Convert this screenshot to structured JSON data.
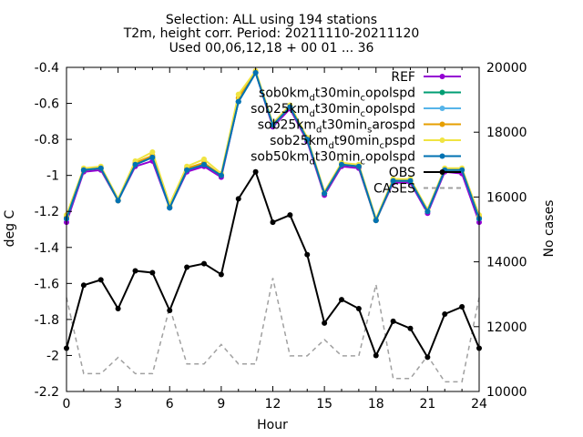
{
  "chart_data": {
    "type": "line",
    "title_lines": [
      "Selection: ALL using   194 stations",
      "T2m, height corr.   Period: 20211110-20211120",
      "Used 00,06,12,18 + 00 01 ... 36"
    ],
    "xlabel": "Hour",
    "ylabel": "deg C",
    "y2label": "No cases",
    "xlim": [
      0,
      24
    ],
    "ylim": [
      -2.2,
      -0.4
    ],
    "y2lim": [
      10000,
      20000
    ],
    "xticks": [
      "0",
      "3",
      "6",
      "9",
      "12",
      "15",
      "18",
      "21",
      "24"
    ],
    "yticks": [
      "-0.4",
      "-0.6",
      "-0.8",
      "-1",
      "-1.2",
      "-1.4",
      "-1.6",
      "-1.8",
      "-2",
      "-2.2"
    ],
    "y2ticks": [
      "10000",
      "12000",
      "14000",
      "16000",
      "18000",
      "20000"
    ],
    "grid": false,
    "legend_position": "top-right",
    "x": [
      0,
      1,
      2,
      3,
      4,
      5,
      6,
      7,
      8,
      9,
      10,
      11,
      12,
      13,
      14,
      15,
      16,
      17,
      18,
      19,
      20,
      21,
      22,
      23,
      24
    ],
    "series": [
      {
        "name": "REF",
        "legend_main": "REF",
        "legend_sub": "",
        "legend_tail": "",
        "color": "#9400d3",
        "marker": "circle",
        "axis": "y1",
        "values": [
          -1.26,
          -0.98,
          -0.97,
          -1.14,
          -0.95,
          -0.92,
          -1.18,
          -0.98,
          -0.95,
          -1.01,
          -0.59,
          -0.43,
          -0.73,
          -0.63,
          -0.81,
          -1.11,
          -0.95,
          -0.96,
          -1.25,
          -1.04,
          -1.04,
          -1.21,
          -0.98,
          -0.99,
          -1.26
        ]
      },
      {
        "name": "sob0km_dt30min_copolspd",
        "legend_main": "sob0km",
        "legend_sub": "d",
        "legend_tail": "t30min",
        "legend_sub2": "c",
        "legend_tail2": "opolspd",
        "color": "#009e73",
        "marker": "circle",
        "axis": "y1",
        "values": [
          -1.24,
          -0.97,
          -0.96,
          -1.14,
          -0.94,
          -0.9,
          -1.18,
          -0.97,
          -0.94,
          -1.0,
          -0.59,
          -0.43,
          -0.72,
          -0.62,
          -0.8,
          -1.1,
          -0.94,
          -0.95,
          -1.25,
          -1.03,
          -1.03,
          -1.2,
          -0.97,
          -0.97,
          -1.24
        ]
      },
      {
        "name": "sob25km_dt30min_copolspd",
        "legend_main": "sob25km",
        "legend_sub": "d",
        "legend_tail": "t30min",
        "legend_sub2": "c",
        "legend_tail2": "opolspd",
        "color": "#56b4e9",
        "marker": "circle",
        "axis": "y1",
        "values": [
          -1.24,
          -0.97,
          -0.96,
          -1.14,
          -0.94,
          -0.9,
          -1.18,
          -0.97,
          -0.94,
          -1.0,
          -0.59,
          -0.43,
          -0.72,
          -0.62,
          -0.8,
          -1.1,
          -0.94,
          -0.95,
          -1.25,
          -1.03,
          -1.03,
          -1.2,
          -0.97,
          -0.97,
          -1.24
        ]
      },
      {
        "name": "sob25km_dt30min_sarospd",
        "legend_main": "sob25km",
        "legend_sub": "d",
        "legend_tail": "t30min",
        "legend_sub2": "s",
        "legend_tail2": "arospd",
        "color": "#e69f00",
        "marker": "circle",
        "axis": "y1",
        "values": [
          -1.23,
          -0.97,
          -0.96,
          -1.14,
          -0.93,
          -0.89,
          -1.17,
          -0.96,
          -0.93,
          -1.0,
          -0.57,
          -0.42,
          -0.72,
          -0.62,
          -0.8,
          -1.1,
          -0.94,
          -0.95,
          -1.25,
          -1.03,
          -1.03,
          -1.19,
          -0.97,
          -0.97,
          -1.23
        ]
      },
      {
        "name": "sob25km_dt90min_cpspd",
        "legend_main": "sob25km",
        "legend_sub": "d",
        "legend_tail": "t90min",
        "legend_sub2": "c",
        "legend_tail2": "pspd",
        "color": "#f0e442",
        "marker": "circle",
        "axis": "y1",
        "values": [
          -1.22,
          -0.96,
          -0.95,
          -1.13,
          -0.92,
          -0.87,
          -1.16,
          -0.95,
          -0.91,
          -0.99,
          -0.55,
          -0.42,
          -0.71,
          -0.61,
          -0.79,
          -1.09,
          -0.93,
          -0.94,
          -1.24,
          -1.02,
          -1.02,
          -1.19,
          -0.96,
          -0.96,
          -1.22
        ]
      },
      {
        "name": "sob50km_dt30min_copolspd",
        "legend_main": "sob50km",
        "legend_sub": "d",
        "legend_tail": "t30min",
        "legend_sub2": "c",
        "legend_tail2": "opolspd",
        "color": "#0072b2",
        "marker": "circle",
        "axis": "y1",
        "values": [
          -1.24,
          -0.97,
          -0.96,
          -1.14,
          -0.94,
          -0.9,
          -1.18,
          -0.97,
          -0.94,
          -1.0,
          -0.59,
          -0.43,
          -0.72,
          -0.62,
          -0.8,
          -1.1,
          -0.94,
          -0.95,
          -1.25,
          -1.03,
          -1.03,
          -1.2,
          -0.97,
          -0.97,
          -1.24
        ]
      },
      {
        "name": "OBS",
        "legend_main": "OBS",
        "legend_sub": "",
        "legend_tail": "",
        "color": "#000000",
        "marker": "circle",
        "axis": "y1",
        "values": [
          -1.96,
          -1.61,
          -1.58,
          -1.74,
          -1.53,
          -1.54,
          -1.75,
          -1.51,
          -1.49,
          -1.55,
          -1.13,
          -0.98,
          -1.26,
          -1.22,
          -1.44,
          -1.82,
          -1.69,
          -1.74,
          -2.0,
          -1.81,
          -1.85,
          -2.01,
          -1.77,
          -1.73,
          -1.96
        ]
      },
      {
        "name": "CASES",
        "legend_main": "CASES",
        "legend_sub": "",
        "legend_tail": "",
        "color": "#a0a0a0",
        "marker": "none",
        "dashed": true,
        "axis": "y2",
        "values": [
          12900,
          10550,
          10550,
          11050,
          10550,
          10550,
          12600,
          10850,
          10850,
          11450,
          10850,
          10850,
          13500,
          11100,
          11100,
          11600,
          11100,
          11100,
          13300,
          10400,
          10400,
          11100,
          10300,
          10300,
          12900
        ]
      }
    ]
  }
}
